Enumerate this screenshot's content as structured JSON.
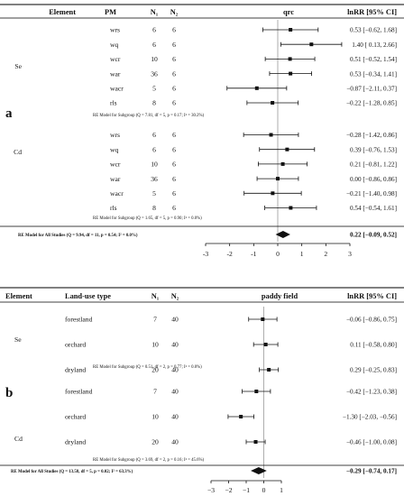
{
  "colors": {
    "ink": "#111111",
    "rule": "#000000",
    "reference_line": "#9a9a9a"
  },
  "chart_data": [
    {
      "panel_label": "a",
      "type": "forest",
      "title": "qrc",
      "headers": {
        "group": "Element",
        "sub": "PM",
        "n1": "N₁",
        "n2": "N₂",
        "plot": "qrc",
        "ci": "lnRR [95% CI]"
      },
      "xlim": [
        -3,
        3
      ],
      "xticks": [
        "-3",
        "-2",
        "-1",
        "0",
        "1",
        "2",
        "3"
      ],
      "reference_line": 0,
      "groups": [
        {
          "name": "Se",
          "rows": [
            {
              "sub": "wrs",
              "n1": "6",
              "n2": "6",
              "est": 0.53,
              "lo": -0.62,
              "hi": 1.68,
              "ci_text": "0.53 [−0.62, 1.68]"
            },
            {
              "sub": "wq",
              "n1": "6",
              "n2": "6",
              "est": 1.4,
              "lo": 0.13,
              "hi": 2.66,
              "ci_text": "1.40 [ 0.13, 2.66]"
            },
            {
              "sub": "wcr",
              "n1": "10",
              "n2": "6",
              "est": 0.51,
              "lo": -0.52,
              "hi": 1.54,
              "ci_text": "0.51 [−0.52, 1.54]"
            },
            {
              "sub": "war",
              "n1": "36",
              "n2": "6",
              "est": 0.53,
              "lo": -0.34,
              "hi": 1.41,
              "ci_text": "0.53 [−0.34, 1.41]"
            },
            {
              "sub": "wacr",
              "n1": "5",
              "n2": "6",
              "est": -0.87,
              "lo": -2.11,
              "hi": 0.37,
              "ci_text": "−0.87 [−2.11, 0.37]"
            },
            {
              "sub": "rls",
              "n1": "8",
              "n2": "6",
              "est": -0.22,
              "lo": -1.28,
              "hi": 0.85,
              "ci_text": "−0.22 [−1.28, 0.85]"
            }
          ],
          "subgroup_note": "RE Model for Subgroup (Q = 7.81, df = 5, p = 0.17; I² = 30.2%)"
        },
        {
          "name": "Cd",
          "rows": [
            {
              "sub": "wrs",
              "n1": "6",
              "n2": "6",
              "est": -0.28,
              "lo": -1.42,
              "hi": 0.86,
              "ci_text": "−0.28 [−1.42, 0.86]"
            },
            {
              "sub": "wq",
              "n1": "6",
              "n2": "6",
              "est": 0.39,
              "lo": -0.76,
              "hi": 1.53,
              "ci_text": "0.39 [−0.76, 1.53]"
            },
            {
              "sub": "wcr",
              "n1": "10",
              "n2": "6",
              "est": 0.21,
              "lo": -0.81,
              "hi": 1.22,
              "ci_text": "0.21 [−0.81, 1.22]"
            },
            {
              "sub": "war",
              "n1": "36",
              "n2": "6",
              "est": 0.0,
              "lo": -0.86,
              "hi": 0.86,
              "ci_text": "0.00 [−0.86, 0.86]"
            },
            {
              "sub": "wacr",
              "n1": "5",
              "n2": "6",
              "est": -0.21,
              "lo": -1.4,
              "hi": 0.98,
              "ci_text": "−0.21 [−1.40, 0.98]"
            },
            {
              "sub": "rls",
              "n1": "8",
              "n2": "6",
              "est": 0.54,
              "lo": -0.54,
              "hi": 1.61,
              "ci_text": "0.54 [−0.54, 1.61]"
            }
          ],
          "subgroup_note": "RE Model for Subgroup (Q = 1.65, df = 5, p = 0.90; I² = 0.0%)"
        }
      ],
      "overall": {
        "label": "RE Model for All Studies (Q = 9.94, df = 11, p = 0.54; I² = 0.0%)",
        "est": 0.22,
        "lo": -0.09,
        "hi": 0.52,
        "ci_text": "0.22 [−0.09, 0.52]"
      }
    },
    {
      "panel_label": "b",
      "type": "forest",
      "title": "paddy field",
      "headers": {
        "group": "Element",
        "sub": "Land-use type",
        "n1": "N₁",
        "n2": "N₂",
        "plot": "paddy field",
        "ci": "lnRR [95% CI]"
      },
      "xlim": [
        -3,
        1
      ],
      "xticks": [
        "−3",
        "−2",
        "−1",
        "0",
        "1"
      ],
      "reference_line": 0,
      "groups": [
        {
          "name": "Se",
          "rows": [
            {
              "sub": "forestland",
              "n1": "7",
              "n2": "40",
              "est": -0.06,
              "lo": -0.86,
              "hi": 0.75,
              "ci_text": "−0.06 [−0.86, 0.75]"
            },
            {
              "sub": "orchard",
              "n1": "10",
              "n2": "40",
              "est": 0.11,
              "lo": -0.58,
              "hi": 0.8,
              "ci_text": "0.11 [−0.58, 0.80]"
            },
            {
              "sub": "dryland",
              "n1": "20",
              "n2": "40",
              "est": 0.29,
              "lo": -0.25,
              "hi": 0.83,
              "ci_text": "0.29 [−0.25, 0.83]"
            }
          ],
          "subgroup_note": "RE Model for Subgroup (Q = 0.51, df = 2, p = 0.77; I² = 0.0%)"
        },
        {
          "name": "Cd",
          "rows": [
            {
              "sub": "forestland",
              "n1": "7",
              "n2": "40",
              "est": -0.42,
              "lo": -1.23,
              "hi": 0.38,
              "ci_text": "−0.42 [−1.23, 0.38]"
            },
            {
              "sub": "orchard",
              "n1": "10",
              "n2": "40",
              "est": -1.3,
              "lo": -2.03,
              "hi": -0.56,
              "ci_text": "−1.30 [−2.03, −0.56]"
            },
            {
              "sub": "dryland",
              "n1": "20",
              "n2": "40",
              "est": -0.46,
              "lo": -1.0,
              "hi": 0.08,
              "ci_text": "−0.46 [−1.00, 0.08]"
            }
          ],
          "subgroup_note": "RE Model for Subgroup (Q = 3.69, df = 2, p = 0.16; I² = 45.6%)"
        }
      ],
      "overall": {
        "label": "RE Model for All Studies (Q = 13.58, df = 5, p = 0.02; I² = 63.3%)",
        "est": -0.29,
        "lo": -0.74,
        "hi": 0.17,
        "ci_text": "−0.29 [−0.74, 0.17]"
      }
    }
  ]
}
